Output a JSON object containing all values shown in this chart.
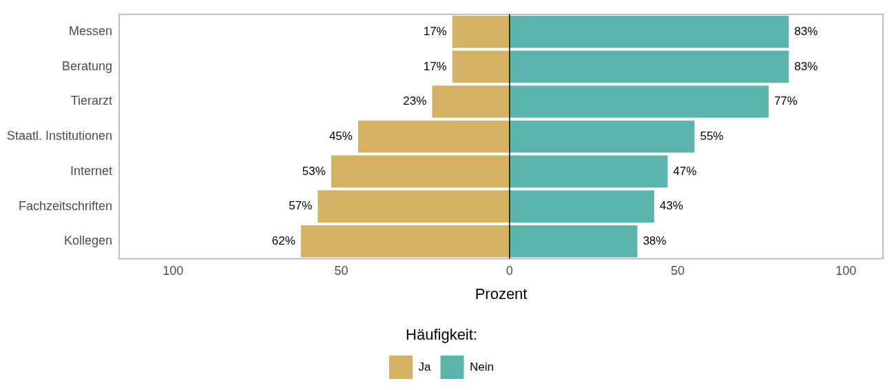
{
  "chart_data": {
    "type": "bar",
    "orientation": "horizontal",
    "categories": [
      "Messen",
      "Beratung",
      "Tierarzt",
      "Staatl. Institutionen",
      "Internet",
      "Fachzeitschriften",
      "Kollegen"
    ],
    "series": [
      {
        "name": "Ja",
        "color": "#d5b263",
        "base": [
          -17,
          -17,
          -23,
          -45,
          -53,
          -57,
          -62
        ],
        "values": [
          17,
          17,
          23,
          45,
          53,
          57,
          62
        ],
        "value_labels": [
          "17%",
          "17%",
          "23%",
          "45%",
          "53%",
          "57%",
          "62%"
        ]
      },
      {
        "name": "Nein",
        "color": "#5ab4ac",
        "values": [
          83,
          83,
          77,
          55,
          47,
          43,
          38
        ],
        "value_labels": [
          "83%",
          "83%",
          "77%",
          "55%",
          "47%",
          "43%",
          "38%"
        ]
      }
    ],
    "xlabel": "Prozent",
    "legend_title": "Häufigkeit:",
    "legend": "bottom",
    "xlim": [
      -116,
      111
    ],
    "xticks": [
      {
        "value": -100,
        "label": "100"
      },
      {
        "value": -50,
        "label": "50"
      },
      0,
      50,
      100
    ],
    "ref_lines": [
      {
        "axis": "x",
        "value": 0,
        "color": "#000000"
      }
    ]
  }
}
